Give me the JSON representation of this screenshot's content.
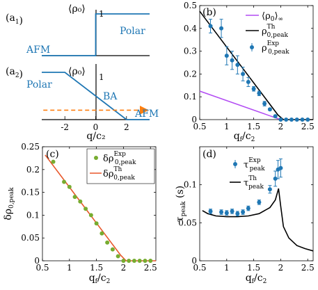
{
  "colors": {
    "blue": "#1f77b4",
    "orange": "#ff7f0e",
    "purple": "#b24bf3",
    "green": "#77ac30",
    "red": "#e8572a",
    "black": "#000000"
  },
  "chart_data": [
    {
      "id": "a1",
      "type": "line",
      "panel_label": "(a₁)",
      "ylabel": "⟨ρ₀⟩",
      "y_tick": "1",
      "annotations": [
        "AFM",
        "Polar"
      ],
      "xlim": [
        -3.5,
        3.5
      ],
      "ylim": [
        0,
        1.15
      ],
      "series": [
        {
          "x": [
            -3.5,
            0,
            0,
            3.5
          ],
          "y": [
            0,
            0,
            1,
            1
          ]
        }
      ]
    },
    {
      "id": "a2",
      "type": "line",
      "panel_label": "(a₂)",
      "ylabel": "⟨ρ₀⟩",
      "y_tick": "1",
      "xlabel": "q/c₂",
      "xlim": [
        -3.5,
        3.5
      ],
      "ylim": [
        0,
        1.2
      ],
      "x_ticks": [
        -2,
        0,
        2
      ],
      "annotations": [
        "Polar",
        "BA",
        "AFM"
      ],
      "series": [
        {
          "x": [
            -3.5,
            -2,
            2,
            3.5
          ],
          "y": [
            1,
            1,
            0,
            0
          ]
        },
        {
          "x": [
            -3.4,
            3.3
          ],
          "y": [
            0.2,
            0.2
          ],
          "style": "dashed-arrow"
        }
      ]
    },
    {
      "id": "b",
      "type": "line",
      "panel_label": "(b)",
      "xlabel": "qₑ/c₂",
      "xlim": [
        0.5,
        2.6
      ],
      "ylim": [
        0,
        0.5
      ],
      "x_ticks": [
        0.5,
        1,
        1.5,
        2,
        2.5
      ],
      "y_ticks": [
        0,
        0.1,
        0.2,
        0.3,
        0.4,
        0.5
      ],
      "legend": [
        "⟨ρ₀⟩∞",
        "ρTh0,peak",
        "ρExp0,peak"
      ],
      "series": [
        {
          "name": "⟨ρ₀⟩∞",
          "x": [
            0.5,
            2.0
          ],
          "y": [
            0.125,
            0.0
          ]
        },
        {
          "name": "ρTh0,peak",
          "x": [
            0.5,
            1.95,
            2.05,
            2.6
          ],
          "y": [
            0.475,
            0.02,
            0.0,
            0.0
          ]
        },
        {
          "name": "ρExp0,peak",
          "x": [
            0.7,
            0.9,
            1.0,
            1.1,
            1.2,
            1.3,
            1.4,
            1.5,
            1.6,
            1.7,
            1.8,
            1.9,
            2.0,
            2.1,
            2.2,
            2.3,
            2.4,
            2.5
          ],
          "y": [
            0.41,
            0.4,
            0.28,
            0.26,
            0.24,
            0.2,
            0.165,
            0.135,
            0.115,
            0.07,
            0.045,
            0.015,
            0.0,
            0.0,
            0.0,
            0.0,
            0.0,
            0.0
          ],
          "err": [
            0.03,
            0.04,
            0.04,
            0.04,
            0.04,
            0.03,
            0.02,
            0.01,
            0.01,
            0.01,
            0.005,
            0.005,
            0.003,
            0.002,
            0.002,
            0.002,
            0.002,
            0.002
          ]
        }
      ]
    },
    {
      "id": "c",
      "type": "scatter",
      "panel_label": "(c)",
      "xlabel": "qₑ/c₂",
      "ylabel": "δρ₀,peak",
      "xlim": [
        0.5,
        2.6
      ],
      "ylim": [
        0,
        0.25
      ],
      "x_ticks": [
        0.5,
        1,
        1.5,
        2,
        2.5
      ],
      "y_ticks": [
        0,
        0.05,
        0.1,
        0.15,
        0.2,
        0.25
      ],
      "legend": [
        "δρExp0,peak",
        "δρTh0,peak"
      ],
      "series": [
        {
          "name": "δρExp0,peak",
          "x": [
            0.7,
            0.9,
            1.0,
            1.1,
            1.2,
            1.3,
            1.4,
            1.5,
            1.6,
            1.7,
            1.8,
            1.9,
            2.0,
            2.1,
            2.2,
            2.3,
            2.4,
            2.5
          ],
          "y": [
            0.217,
            0.173,
            0.162,
            0.14,
            0.13,
            0.114,
            0.1,
            0.082,
            0.06,
            0.04,
            0.025,
            0.01,
            0.0,
            0.0,
            0.0,
            0.0,
            0.0,
            0.0
          ]
        },
        {
          "name": "δρTh0,peak",
          "x": [
            0.55,
            1.95,
            2.05,
            2.6
          ],
          "y": [
            0.232,
            0.012,
            0.0,
            0.0
          ]
        }
      ]
    },
    {
      "id": "d",
      "type": "line",
      "panel_label": "(d)",
      "xlabel": "qₑ/c₂",
      "ylabel": "τpeak (s)",
      "xlim": [
        0.5,
        2.6
      ],
      "ylim": [
        0,
        0.15
      ],
      "x_ticks": [
        0.5,
        1,
        1.5,
        2,
        2.5
      ],
      "y_ticks": [
        0,
        0.05,
        0.1
      ],
      "legend": [
        "τExppeak",
        "τThpeak"
      ],
      "series": [
        {
          "name": "τExppeak",
          "x": [
            0.7,
            0.9,
            1.0,
            1.1,
            1.2,
            1.3,
            1.4,
            1.6,
            1.8,
            1.9,
            1.95,
            2.0
          ],
          "y": [
            0.065,
            0.064,
            0.063,
            0.065,
            0.062,
            0.064,
            0.069,
            0.077,
            0.094,
            0.108,
            0.12,
            0.122
          ],
          "err": [
            0.003,
            0.003,
            0.003,
            0.003,
            0.003,
            0.003,
            0.003,
            0.003,
            0.005,
            0.01,
            0.012,
            0.012
          ]
        },
        {
          "name": "τThpeak",
          "x": [
            0.55,
            0.65,
            0.8,
            1.0,
            1.2,
            1.4,
            1.6,
            1.8,
            1.9,
            1.96,
            2.0,
            2.05,
            2.15,
            2.3,
            2.45,
            2.6
          ],
          "y": [
            0.066,
            0.062,
            0.059,
            0.058,
            0.058,
            0.059,
            0.062,
            0.07,
            0.08,
            0.095,
            0.072,
            0.045,
            0.03,
            0.02,
            0.016,
            0.013
          ]
        }
      ]
    }
  ]
}
